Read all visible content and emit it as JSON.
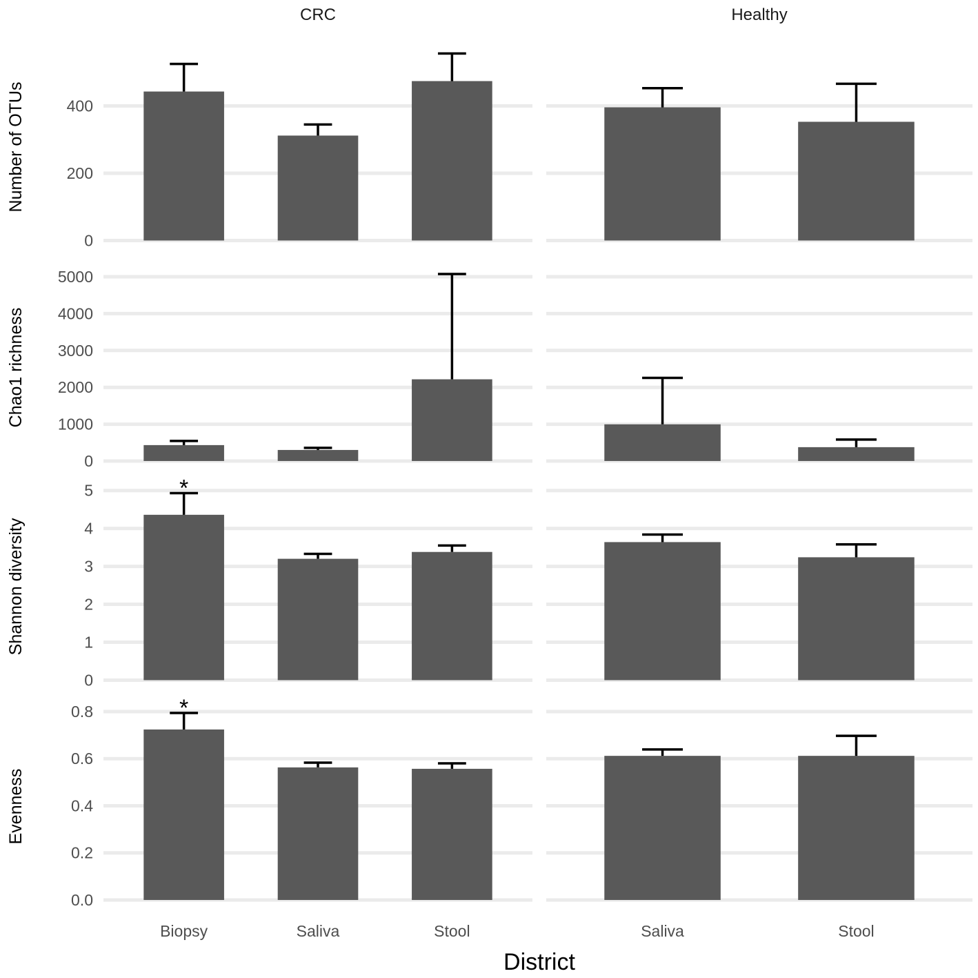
{
  "chart_data": {
    "type": "bar",
    "xlabel": "District",
    "facets": [
      "CRC",
      "Healthy"
    ],
    "categories": {
      "CRC": [
        "Biopsy",
        "Saliva",
        "Stool"
      ],
      "Healthy": [
        "Saliva",
        "Stool"
      ]
    },
    "grid": true,
    "colors": {
      "bar": "#595959",
      "error": "#000000",
      "grid": "#ebebeb"
    },
    "rows": [
      {
        "ylabel": "Number of OTUs",
        "ylim": [
          -27.8,
          583.8
        ],
        "ticks": [
          0,
          200,
          400
        ],
        "tick_labels": [
          "0",
          "200",
          "400"
        ],
        "values": {
          "CRC": [
            443,
            312,
            474
          ],
          "Healthy": [
            396,
            353
          ]
        },
        "error_upper": {
          "CRC": [
            525,
            345,
            556
          ],
          "Healthy": [
            453,
            466
          ]
        },
        "significant": {
          "CRC": [
            false,
            false,
            false
          ],
          "Healthy": [
            false,
            false
          ]
        }
      },
      {
        "ylabel": "Chao1 richness",
        "ylim": [
          -253.75,
          5328.75
        ],
        "ticks": [
          0,
          1000,
          2000,
          3000,
          4000,
          5000
        ],
        "tick_labels": [
          "0",
          "1000",
          "2000",
          "3000",
          "4000",
          "5000"
        ],
        "values": {
          "CRC": [
            432,
            300,
            2218
          ],
          "Healthy": [
            996,
            376
          ]
        },
        "error_upper": {
          "CRC": [
            545,
            357,
            5075
          ],
          "Healthy": [
            2256,
            583
          ]
        },
        "significant": {
          "CRC": [
            false,
            false,
            false
          ],
          "Healthy": [
            false,
            false
          ]
        }
      },
      {
        "ylabel": "Shannon diversity",
        "ylim": [
          -0.2465,
          5.1765
        ],
        "ticks": [
          0,
          1,
          2,
          3,
          4,
          5
        ],
        "tick_labels": [
          "0",
          "1",
          "2",
          "3",
          "4",
          "5"
        ],
        "values": {
          "CRC": [
            4.36,
            3.2,
            3.38
          ],
          "Healthy": [
            3.64,
            3.24
          ]
        },
        "error_upper": {
          "CRC": [
            4.93,
            3.33,
            3.55
          ],
          "Healthy": [
            3.84,
            3.58
          ]
        },
        "significant": {
          "CRC": [
            true,
            false,
            false
          ],
          "Healthy": [
            false,
            false
          ]
        }
      },
      {
        "ylabel": "Evenness",
        "ylim": [
          -0.0397,
          0.8337
        ],
        "ticks": [
          0,
          0.2,
          0.4,
          0.6,
          0.8
        ],
        "tick_labels": [
          "0.0",
          "0.2",
          "0.4",
          "0.6",
          "0.8"
        ],
        "values": {
          "CRC": [
            0.724,
            0.563,
            0.557
          ],
          "Healthy": [
            0.612,
            0.612
          ]
        },
        "error_upper": {
          "CRC": [
            0.794,
            0.583,
            0.58
          ],
          "Healthy": [
            0.639,
            0.697
          ]
        },
        "significant": {
          "CRC": [
            true,
            false,
            false
          ],
          "Healthy": [
            false,
            false
          ]
        }
      }
    ],
    "significance_marker": "*"
  }
}
